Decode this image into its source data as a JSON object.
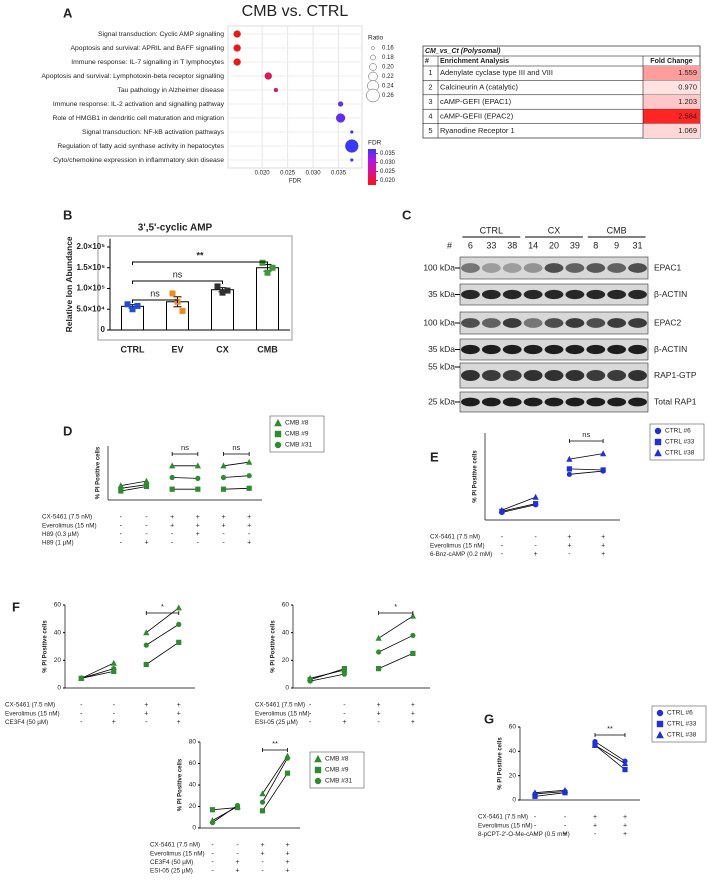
{
  "chart_data": [
    {
      "type": "bubble",
      "label": "A",
      "title": "CMB vs. CTRL",
      "xlabel": "FDR",
      "categories": [
        "Signal transduction: Cyclic AMP signalling",
        "Apoptosis and survival: APRIL and BAFF signalling",
        "Immune response: IL-7 signalling in T lymphocytes",
        "Apoptosis and survival: Lymphotoxin-beta receptor signalling",
        "Tau pathology in Alzheimer disease",
        "Immune response: IL-2 activation and signalling pathway",
        "Role of HMGB1 in dendritic cell maturation and migration",
        "Signal transduction: NF-kB activation pathways",
        "Regulation of fatty acid synthase activity in hepatocytes",
        "Cyto/chemokine expression in inflammatory skin disease"
      ],
      "x": [
        0.0151,
        0.0151,
        0.0151,
        0.0212,
        0.0227,
        0.0354,
        0.0354,
        0.0376,
        0.0376,
        0.0376
      ],
      "sizes": [
        0.2,
        0.2,
        0.2,
        0.2,
        0.17,
        0.18,
        0.22,
        0.16,
        0.26,
        0.16
      ],
      "xlim": [
        0.0133,
        0.0396
      ],
      "xticks": [
        {
          "value": 0.02,
          "label": "0.020"
        },
        0.025,
        {
          "value": 0.03,
          "label": "0.030"
        },
        0.035
      ],
      "grid": true,
      "size_title": "Ratio",
      "size_ticks": [
        0.16,
        0.18,
        {
          "value": 0.2,
          "label": "0.20"
        },
        0.22,
        0.24,
        0.26
      ],
      "color_title": "FDR",
      "clim": [
        0.0175,
        0.0375
      ],
      "colorbar_ticks": [
        0.035,
        {
          "value": 0.03,
          "label": "0.030"
        },
        0.025,
        {
          "value": 0.02,
          "label": "0.020"
        }
      ],
      "colormap": [
        "#ff1010",
        "#e0108a",
        "#c010e0",
        "#3838ff"
      ]
    },
    {
      "type": "bar",
      "label": "B",
      "title": "3',5'-cyclic AMP",
      "ylabel": "Relative Ion Abundance",
      "categories": [
        "CTRL",
        "EV",
        "CX",
        "CMB"
      ],
      "values": [
        57000,
        68000,
        97000,
        150000
      ],
      "errors": [
        4000,
        12000,
        5000,
        8000
      ],
      "points": [
        [
          62000,
          50000,
          58000
        ],
        [
          88000,
          68000,
          46000
        ],
        [
          105000,
          90000,
          95000
        ],
        [
          162000,
          138000,
          150000
        ]
      ],
      "point_colors": [
        "#1f4fd8",
        "#f08a1c",
        "#303030",
        "#3a9a3a"
      ],
      "ylim": [
        0,
        220000
      ],
      "yticks": [
        0,
        {
          "value": 50000,
          "label": "5.0×10⁴"
        },
        {
          "value": 100000,
          "label": "1.0×10⁵"
        },
        {
          "value": 150000,
          "label": "1.5×10⁵"
        },
        {
          "value": 200000,
          "label": "2.0×10⁵"
        }
      ],
      "significance": [
        {
          "between": [
            0,
            1
          ],
          "label": "ns"
        },
        {
          "between": [
            0,
            2
          ],
          "label": "ns"
        },
        {
          "between": [
            0,
            3
          ],
          "label": "**"
        }
      ]
    },
    {
      "type": "paired",
      "label": "D",
      "ylabel": "% PI Positive cells",
      "ylim": [
        0,
        60
      ],
      "color": "#2e8b2e",
      "legend": true,
      "rows": [
        {
          "label": "CX-5461 (7.5 nM)",
          "signs": [
            "-",
            "-",
            "+",
            "+",
            "+",
            "+"
          ]
        },
        {
          "label": "Everolimus (15 nM)",
          "signs": [
            "-",
            "-",
            "+",
            "+",
            "+",
            "+"
          ]
        },
        {
          "label": "H89 (0.3 µM)",
          "signs": [
            "-",
            "-",
            "-",
            "+",
            "-",
            "-"
          ]
        },
        {
          "label": "H89 (1 µM)",
          "signs": [
            "-",
            "+",
            "-",
            "-",
            "-",
            "+"
          ]
        }
      ],
      "series": [
        {
          "name": "CMB #8",
          "marker": "triangle",
          "values": [
            16,
            21,
            38,
            38,
            38,
            42
          ]
        },
        {
          "name": "CMB #9",
          "marker": "square",
          "values": [
            10,
            15,
            12,
            12,
            12,
            13
          ]
        },
        {
          "name": "CMB #31",
          "marker": "circle",
          "values": [
            13,
            17,
            25,
            24,
            25,
            27
          ]
        }
      ],
      "significance": [
        {
          "between": [
            2,
            3
          ],
          "label": "ns"
        },
        {
          "between": [
            4,
            5
          ],
          "label": "ns"
        }
      ]
    },
    {
      "type": "paired",
      "label": "E",
      "ylabel": "% PI Positive cells",
      "ylim": [
        0,
        80
      ],
      "color": "#1f2fe0",
      "legend": true,
      "rows": [
        {
          "label": "CX-5461 (7.5 nM)",
          "signs": [
            "-",
            "-",
            "+",
            "+"
          ]
        },
        {
          "label": "Everolimus (15 nM)",
          "signs": [
            "-",
            "-",
            "+",
            "+"
          ]
        },
        {
          "label": "6-Bnz-cAMP (0.2 mM)",
          "signs": [
            "-",
            "+",
            "-",
            "+"
          ]
        }
      ],
      "series": [
        {
          "name": "CTRL #6",
          "marker": "circle",
          "values": [
            7,
            14,
            42,
            45
          ]
        },
        {
          "name": "CTRL #33",
          "marker": "square",
          "values": [
            8,
            15,
            47,
            46
          ]
        },
        {
          "name": "CTRL #38",
          "marker": "triangle",
          "values": [
            9,
            21,
            56,
            61
          ]
        }
      ],
      "significance": [
        {
          "between": [
            2,
            3
          ],
          "label": "ns"
        }
      ]
    },
    {
      "type": "paired",
      "label": "F",
      "ylabel": "% PI Positive cells",
      "ylim": [
        0,
        60
      ],
      "yticks": [
        0,
        20,
        40,
        60
      ],
      "color": "#2e8b2e",
      "legend": false,
      "rows": [
        {
          "label": "CX-5461 (7.5 nM)",
          "signs": [
            "-",
            "-",
            "+",
            "+"
          ]
        },
        {
          "label": "Everolimus (15 nM)",
          "signs": [
            "-",
            "-",
            "+",
            "+"
          ]
        },
        {
          "label": "CE3F4 (50 µM)",
          "signs": [
            "-",
            "+",
            "-",
            "+"
          ]
        }
      ],
      "series": [
        {
          "marker": "triangle",
          "values": [
            7,
            18,
            40,
            58
          ]
        },
        {
          "marker": "square",
          "values": [
            7,
            12,
            17,
            33
          ]
        },
        {
          "marker": "circle",
          "values": [
            7,
            14,
            31,
            46
          ]
        }
      ],
      "significance": [
        {
          "between": [
            2,
            3
          ],
          "label": "*"
        }
      ]
    },
    {
      "type": "paired",
      "ylabel": "% PI Positive cells",
      "ylim": [
        0,
        60
      ],
      "yticks": [
        0,
        20,
        40,
        60
      ],
      "color": "#2e8b2e",
      "legend": false,
      "rows": [
        {
          "label": "CX-5461 (7.5 nM)",
          "signs": [
            "-",
            "-",
            "+",
            "+"
          ]
        },
        {
          "label": "Everolimus (15 nM)",
          "signs": [
            "-",
            "-",
            "+",
            "+"
          ]
        },
        {
          "label": "ESI-05 (25 µM)",
          "signs": [
            "-",
            "+",
            "-",
            "+"
          ]
        }
      ],
      "series": [
        {
          "marker": "triangle",
          "values": [
            7,
            13,
            36,
            52
          ]
        },
        {
          "marker": "square",
          "values": [
            6,
            14,
            14,
            25
          ]
        },
        {
          "marker": "circle",
          "values": [
            5,
            10,
            26,
            38
          ]
        }
      ],
      "significance": [
        {
          "between": [
            2,
            3
          ],
          "label": "*"
        }
      ]
    },
    {
      "type": "paired",
      "ylabel": "% PI Positive cells",
      "ylim": [
        0,
        80
      ],
      "yticks": [
        0,
        20,
        40,
        60,
        80
      ],
      "color": "#2e8b2e",
      "legend": true,
      "rows": [
        {
          "label": "CX-5461 (7.5 nM)",
          "signs": [
            "-",
            "-",
            "+",
            "+"
          ]
        },
        {
          "label": "Everolimus (15 nM)",
          "signs": [
            "-",
            "-",
            "+",
            "+"
          ]
        },
        {
          "label": "CE3F4 (50 µM)",
          "signs": [
            "-",
            "+",
            "-",
            "+"
          ]
        },
        {
          "label": "ESI-05 (25 µM)",
          "signs": [
            "-",
            "+",
            "-",
            "+"
          ]
        }
      ],
      "series": [
        {
          "name": "CMB #8",
          "marker": "triangle",
          "values": [
            7,
            20,
            32,
            67
          ]
        },
        {
          "name": "CMB #9",
          "marker": "square",
          "values": [
            17,
            19,
            16,
            51
          ]
        },
        {
          "name": "CMB #31",
          "marker": "circle",
          "values": [
            5,
            21,
            24,
            65
          ]
        }
      ],
      "significance": [
        {
          "between": [
            2,
            3
          ],
          "label": "**"
        }
      ]
    },
    {
      "type": "paired",
      "label": "G",
      "ylabel": "% PI Positive cells",
      "ylim": [
        0,
        60
      ],
      "yticks": [
        0,
        20,
        40,
        60
      ],
      "color": "#1f2fe0",
      "legend": true,
      "rows": [
        {
          "label": "CX-5461 (7.5 nM)",
          "signs": [
            "-",
            "-",
            "+",
            "+"
          ]
        },
        {
          "label": "Everolimus (15 nM)",
          "signs": [
            "-",
            "-",
            "+",
            "+"
          ]
        },
        {
          "label": "8-pCPT-2'-O-Me-cAMP (0.5 mM)",
          "signs": [
            "-",
            "+",
            "-",
            "+"
          ]
        }
      ],
      "series": [
        {
          "name": "CTRL #6",
          "marker": "circle",
          "values": [
            5,
            7,
            48,
            32
          ]
        },
        {
          "name": "CTRL #33",
          "marker": "square",
          "values": [
            3,
            6,
            45,
            25
          ]
        },
        {
          "name": "CTRL #38",
          "marker": "triangle",
          "values": [
            6,
            8,
            45,
            30
          ]
        }
      ],
      "significance": [
        {
          "between": [
            2,
            3
          ],
          "label": "**"
        }
      ]
    }
  ],
  "table": {
    "title": "CM_vs_Ct (Polysomal)",
    "columns": [
      "#",
      "Enrichment Analysis",
      "Fold Change"
    ],
    "rows": [
      [
        "1",
        "Adenylate cyclase type III and VIII",
        1.559
      ],
      [
        "2",
        "Calcineurin A (catalytic)",
        0.97
      ],
      [
        "3",
        "cAMP-GEFI (EPAC1)",
        1.203
      ],
      [
        "4",
        "cAMP-GEFII (EPAC2)",
        2.584
      ],
      [
        "5",
        "Ryanodine Receptor 1",
        1.069
      ]
    ],
    "fold_change_labels": [
      "1.559",
      "0.970",
      "1.203",
      "2.584",
      "1.069"
    ]
  },
  "blot": {
    "label": "C",
    "hash": "#",
    "groups": [
      "CTRL",
      "CX",
      "CMB"
    ],
    "lanes": [
      "6",
      "33",
      "38",
      "14",
      "20",
      "39",
      "8",
      "9",
      "31"
    ],
    "rows": [
      {
        "kda": "100 kDa",
        "protein": "EPAC1"
      },
      {
        "kda": "35 kDa",
        "protein": "β-ACTIN"
      },
      {
        "kda": "100 kDa",
        "protein": "EPAC2"
      },
      {
        "kda": "35 kDa",
        "protein": "β-ACTIN"
      },
      {
        "kda": "55 kDa",
        "protein": "RAP1-GTP"
      },
      {
        "kda": "25 kDa",
        "protein": "Total RAP1"
      }
    ]
  }
}
